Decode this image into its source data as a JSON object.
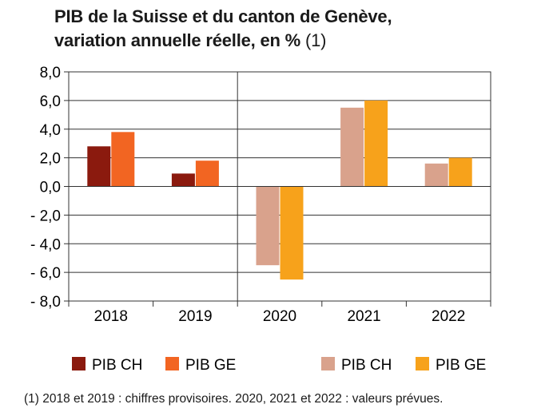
{
  "title": {
    "line1": "PIB de la Suisse et du canton de Genève,",
    "line2": "variation annuelle réelle, en %",
    "note": "(1)"
  },
  "footnote": "(1) 2018 et 2019 : chiffres provisoires. 2020, 2021 et 2022 : valeurs prévues.",
  "colors": {
    "ch_provisional": "#8b1a0e",
    "ge_provisional": "#f26522",
    "ch_forecast": "#d9a28c",
    "ge_forecast": "#f7a21b",
    "axis": "#333333"
  },
  "chart_data": {
    "type": "bar",
    "title": "PIB de la Suisse et du canton de Genève, variation annuelle réelle, en % (1)",
    "xlabel": "",
    "ylabel": "",
    "categories": [
      "2018",
      "2019",
      "2020",
      "2021",
      "2022"
    ],
    "ylim": [
      -8,
      8
    ],
    "yticks": [
      8,
      6,
      4,
      2,
      0,
      -2,
      -4,
      -6,
      -8
    ],
    "ytick_labels": [
      "8,0",
      "6,0",
      "4,0",
      "2,0",
      "0,0",
      "- 2,0",
      "- 4,0",
      "- 6,0",
      "- 8,0"
    ],
    "grid": true,
    "legend_position": "bottom",
    "series": [
      {
        "name": "PIB CH",
        "values": [
          2.8,
          0.9,
          -5.5,
          5.5,
          1.6
        ],
        "kind": [
          "provisional",
          "provisional",
          "forecast",
          "forecast",
          "forecast"
        ]
      },
      {
        "name": "PIB GE",
        "values": [
          3.8,
          1.8,
          -6.5,
          6.0,
          2.0
        ],
        "kind": [
          "provisional",
          "provisional",
          "forecast",
          "forecast",
          "forecast"
        ]
      }
    ],
    "legend": [
      {
        "label": "PIB CH",
        "color_key": "ch_provisional"
      },
      {
        "label": "PIB GE",
        "color_key": "ge_provisional"
      },
      {
        "label": "PIB CH",
        "color_key": "ch_forecast"
      },
      {
        "label": "PIB GE",
        "color_key": "ge_forecast"
      }
    ]
  }
}
